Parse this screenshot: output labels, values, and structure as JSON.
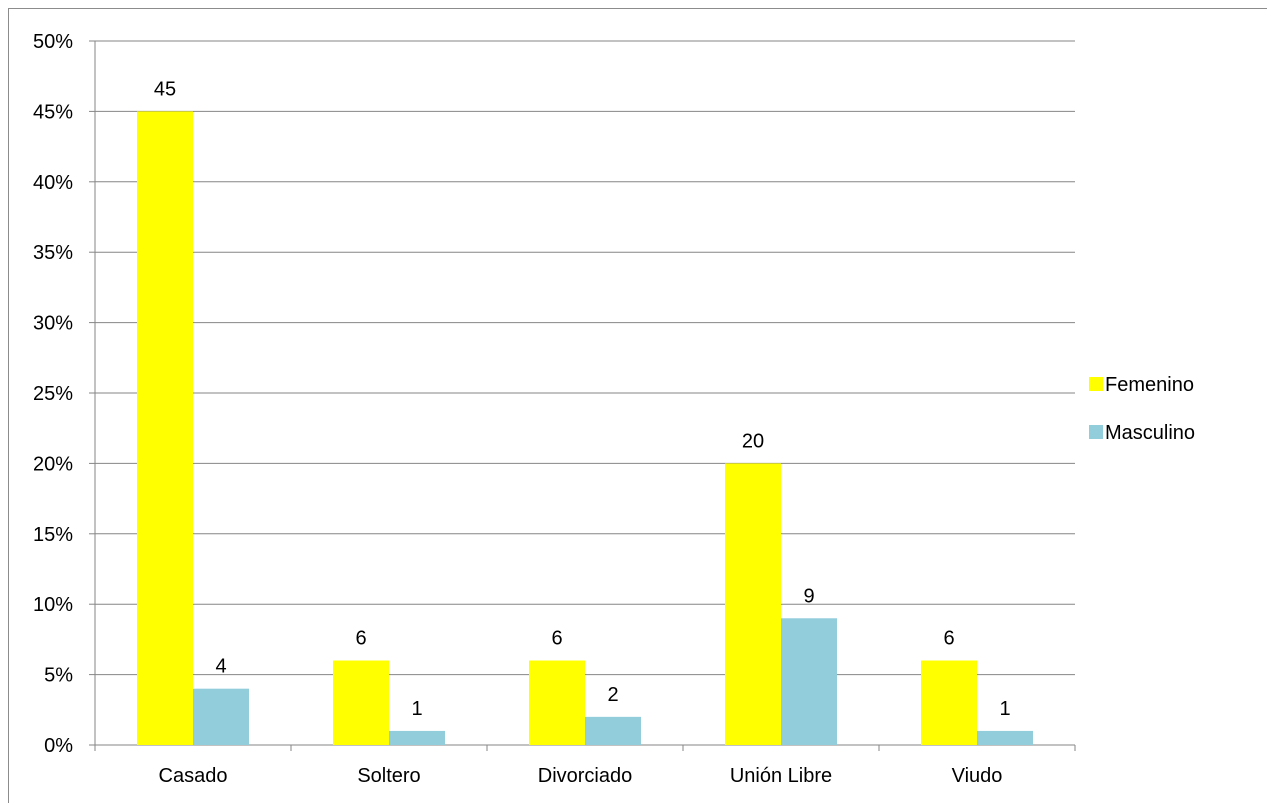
{
  "chart_data": {
    "type": "bar",
    "categories": [
      "Casado",
      "Soltero",
      "Divorciado",
      "Unión Libre",
      "Viudo"
    ],
    "series": [
      {
        "name": "Femenino",
        "values": [
          45,
          6,
          6,
          20,
          6
        ],
        "labels": [
          "45",
          "6",
          "6",
          "20",
          "6"
        ],
        "color": "#ffff00"
      },
      {
        "name": "Masculino",
        "values": [
          4,
          1,
          2,
          9,
          1
        ],
        "labels": [
          "4",
          "1",
          "2",
          "9",
          "1"
        ],
        "color": "#92cddc"
      }
    ],
    "y_unit": "%",
    "ylim": [
      0,
      50
    ],
    "yticks": [
      0,
      5,
      10,
      15,
      20,
      25,
      30,
      35,
      40,
      45,
      50
    ],
    "ytick_labels": [
      "0%",
      "5%",
      "10%",
      "15%",
      "20%",
      "25%",
      "30%",
      "35%",
      "40%",
      "45%",
      "50%"
    ],
    "grid": true,
    "gridline_color": "#868686",
    "legend_position": "right"
  }
}
